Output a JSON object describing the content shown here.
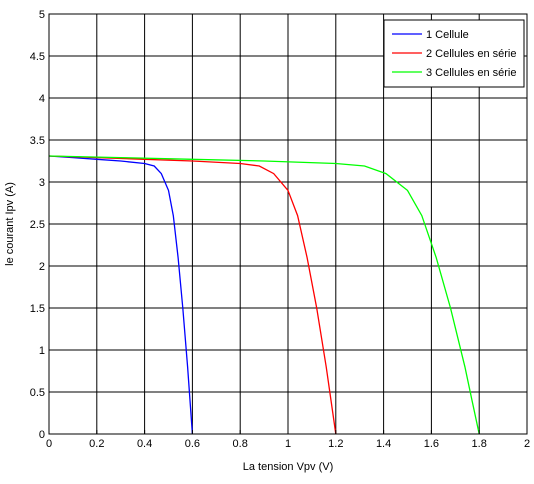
{
  "chart_data": {
    "type": "line",
    "title": "",
    "xlabel": "La tension Vpv (V)",
    "ylabel": "le courant Ipv (A)",
    "xlim": [
      0,
      2
    ],
    "ylim": [
      0,
      5
    ],
    "x_ticks": [
      "0",
      "0.2",
      "0.4",
      "0.6",
      "0.8",
      "1",
      "1.2",
      "1.4",
      "1.6",
      "1.8",
      "2"
    ],
    "y_ticks": [
      "0",
      "0.5",
      "1",
      "1.5",
      "2",
      "2.5",
      "3",
      "3.5",
      "4",
      "4.5",
      "5"
    ],
    "grid": true,
    "legend_position": "top-right",
    "series": [
      {
        "name": "1 Cellule",
        "color": "#0000ff",
        "points": [
          [
            0,
            3.31
          ],
          [
            0.1,
            3.29
          ],
          [
            0.2,
            3.27
          ],
          [
            0.3,
            3.25
          ],
          [
            0.4,
            3.22
          ],
          [
            0.44,
            3.19
          ],
          [
            0.47,
            3.1
          ],
          [
            0.5,
            2.9
          ],
          [
            0.52,
            2.6
          ],
          [
            0.54,
            2.1
          ],
          [
            0.56,
            1.5
          ],
          [
            0.58,
            0.8
          ],
          [
            0.59,
            0.4
          ],
          [
            0.6,
            0
          ]
        ]
      },
      {
        "name": "2 Cellules en série",
        "color": "#ff0000",
        "points": [
          [
            0,
            3.31
          ],
          [
            0.2,
            3.29
          ],
          [
            0.4,
            3.27
          ],
          [
            0.6,
            3.25
          ],
          [
            0.8,
            3.22
          ],
          [
            0.88,
            3.19
          ],
          [
            0.94,
            3.1
          ],
          [
            1.0,
            2.9
          ],
          [
            1.04,
            2.6
          ],
          [
            1.08,
            2.1
          ],
          [
            1.12,
            1.5
          ],
          [
            1.16,
            0.8
          ],
          [
            1.18,
            0.4
          ],
          [
            1.2,
            0
          ]
        ]
      },
      {
        "name": "3 Cellules en série",
        "color": "#00ff00",
        "points": [
          [
            0,
            3.31
          ],
          [
            0.3,
            3.29
          ],
          [
            0.6,
            3.27
          ],
          [
            0.9,
            3.25
          ],
          [
            1.2,
            3.22
          ],
          [
            1.32,
            3.19
          ],
          [
            1.41,
            3.1
          ],
          [
            1.5,
            2.9
          ],
          [
            1.56,
            2.6
          ],
          [
            1.62,
            2.1
          ],
          [
            1.68,
            1.5
          ],
          [
            1.74,
            0.8
          ],
          [
            1.77,
            0.4
          ],
          [
            1.8,
            0
          ]
        ]
      }
    ]
  }
}
